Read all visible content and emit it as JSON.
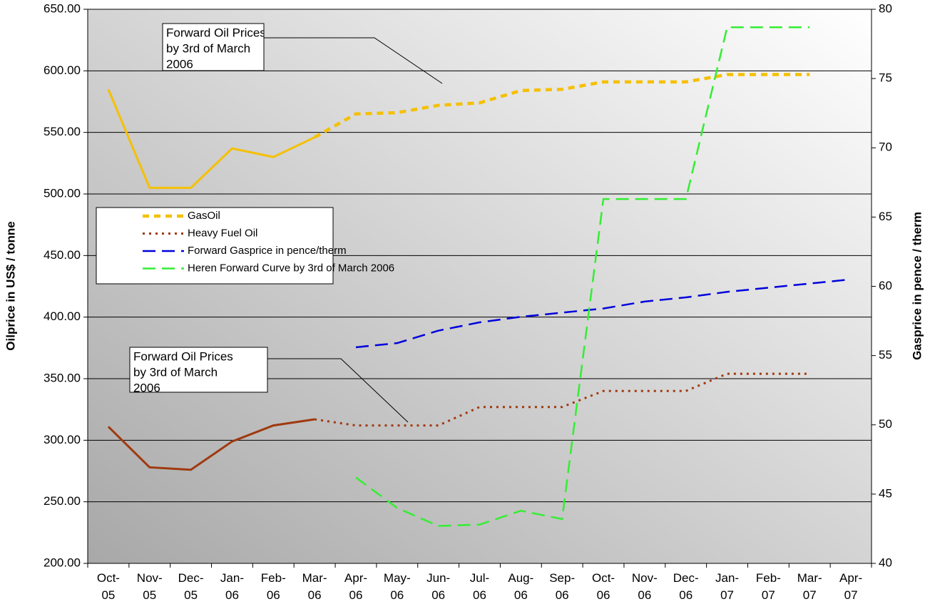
{
  "chart_data": {
    "type": "line",
    "y_label": "Oilprice in US$ / tonne",
    "y2_label": "Gasprice in pence / therm",
    "categories": [
      "Oct-\n05",
      "Nov-\n05",
      "Dec-\n05",
      "Jan-\n06",
      "Feb-\n06",
      "Mar-\n06",
      "Apr-\n06",
      "May-\n06",
      "Jun-\n06",
      "Jul-\n06",
      "Aug-\n06",
      "Sep-\n06",
      "Oct-\n06",
      "Nov-\n06",
      "Dec-\n06",
      "Jan-\n07",
      "Feb-\n07",
      "Mar-\n07",
      "Apr-\n07"
    ],
    "ylim": [
      200,
      650
    ],
    "yticks": [
      {
        "value": 200,
        "label": "200.00"
      },
      {
        "value": 250,
        "label": "250.00"
      },
      {
        "value": 300,
        "label": "300.00"
      },
      {
        "value": 350,
        "label": "350.00"
      },
      {
        "value": 400,
        "label": "400.00"
      },
      {
        "value": 450,
        "label": "450.00"
      },
      {
        "value": 500,
        "label": "500.00"
      },
      {
        "value": 550,
        "label": "550.00"
      },
      {
        "value": 600,
        "label": "600.00"
      },
      {
        "value": 650,
        "label": "650.00"
      }
    ],
    "y2lim": [
      40,
      80
    ],
    "y2ticks": [
      40,
      45,
      50,
      55,
      60,
      65,
      70,
      75,
      80
    ],
    "grid": true,
    "series": [
      {
        "color": "#f5c000",
        "dash": "solid",
        "axis": "y",
        "values": [
          585,
          505,
          505,
          537,
          530,
          546,
          null,
          null,
          null,
          null,
          null,
          null,
          null,
          null,
          null,
          null,
          null,
          null,
          null
        ]
      },
      {
        "name": "GasOil",
        "color": "#f5c000",
        "dash": "dash",
        "axis": "y",
        "values": [
          null,
          null,
          null,
          null,
          null,
          546,
          565,
          566,
          572,
          574,
          584,
          585,
          591,
          591,
          591,
          597,
          597,
          597,
          null
        ]
      },
      {
        "color": "#a0390f",
        "dash": "solid",
        "axis": "y",
        "values": [
          311,
          278,
          276,
          299,
          312,
          317,
          null,
          null,
          null,
          null,
          null,
          null,
          null,
          null,
          null,
          null,
          null,
          null,
          null
        ]
      },
      {
        "name": "Heavy Fuel Oil",
        "color": "#a0390f",
        "dash": "dot",
        "axis": "y",
        "values": [
          null,
          null,
          null,
          null,
          null,
          317,
          312,
          312,
          312,
          327,
          327,
          327,
          340,
          340,
          340,
          354,
          354,
          354,
          null
        ]
      },
      {
        "name": "Forward Gasprice in pence/therm",
        "color": "#0000dd",
        "dash": "longdash",
        "axis": "y2",
        "values": [
          null,
          null,
          null,
          null,
          null,
          null,
          55.6,
          55.9,
          56.8,
          57.4,
          57.8,
          58.1,
          58.4,
          58.9,
          59.2,
          59.6,
          59.9,
          60.2,
          60.5
        ]
      },
      {
        "name": "Heren Forward Curve by 3rd of March 2006",
        "color": "#33ee33",
        "dash": "longdash",
        "axis": "y2",
        "values": [
          null,
          null,
          null,
          null,
          null,
          null,
          46.2,
          44.0,
          42.7,
          42.8,
          43.8,
          43.2,
          66.3,
          66.3,
          66.3,
          78.7,
          78.7,
          78.7,
          null
        ]
      }
    ],
    "annotations": [
      {
        "lines": [
          "Forward Oil Prices",
          "by 3rd of March",
          "2006"
        ]
      },
      {
        "lines": [
          "Forward Oil Prices",
          "by 3rd of March",
          "2006"
        ]
      }
    ]
  }
}
